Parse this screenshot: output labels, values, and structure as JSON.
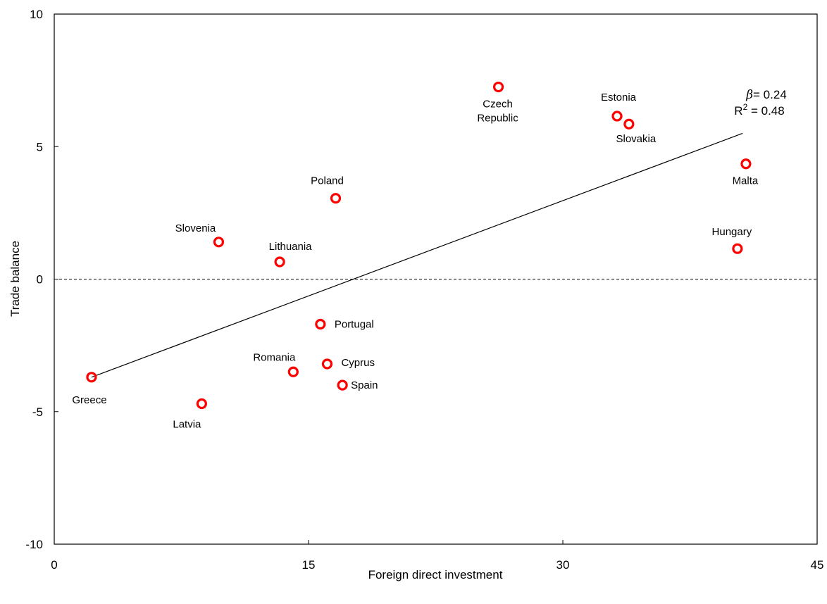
{
  "chart_data": {
    "type": "scatter",
    "xlabel": "Foreign direct investment",
    "ylabel": "Trade balance",
    "xlim": [
      0,
      45
    ],
    "ylim": [
      -10,
      10
    ],
    "xticks": [
      "0",
      "15",
      "30",
      "45"
    ],
    "yticks": [
      "10",
      "5",
      "0",
      "-5",
      "-10"
    ],
    "grid": false,
    "reference_line_y": 0,
    "points": [
      {
        "label": "Greece",
        "x": 2.2,
        "y": -3.7
      },
      {
        "label": "Latvia",
        "x": 8.7,
        "y": -4.7
      },
      {
        "label": "Slovenia",
        "x": 9.7,
        "y": 1.4
      },
      {
        "label": "Lithuania",
        "x": 13.3,
        "y": 0.65
      },
      {
        "label": "Romania",
        "x": 14.1,
        "y": -3.5
      },
      {
        "label": "Portugal",
        "x": 15.7,
        "y": -1.7
      },
      {
        "label": "Cyprus",
        "x": 16.1,
        "y": -3.2
      },
      {
        "label": "Poland",
        "x": 16.6,
        "y": 3.05
      },
      {
        "label": "Spain",
        "x": 17.0,
        "y": -4.0
      },
      {
        "label": "Czech Republic",
        "x": 26.2,
        "y": 7.25
      },
      {
        "label": "Estonia",
        "x": 33.2,
        "y": 6.15
      },
      {
        "label": "Slovakia",
        "x": 33.9,
        "y": 5.85
      },
      {
        "label": "Hungary",
        "x": 40.3,
        "y": 1.15
      },
      {
        "label": "Malta",
        "x": 40.8,
        "y": 4.35
      }
    ],
    "fit_line": {
      "x": [
        2.2,
        40.6
      ],
      "y": [
        -3.7,
        5.5
      ]
    },
    "annotation": {
      "beta_symbol": "β",
      "beta_text": "= 0.24",
      "r2_base": "R",
      "r2_sup": "2",
      "r2_text": " = 0.48"
    },
    "colors": {
      "marker": "#ff0000",
      "line": "#000000"
    }
  }
}
